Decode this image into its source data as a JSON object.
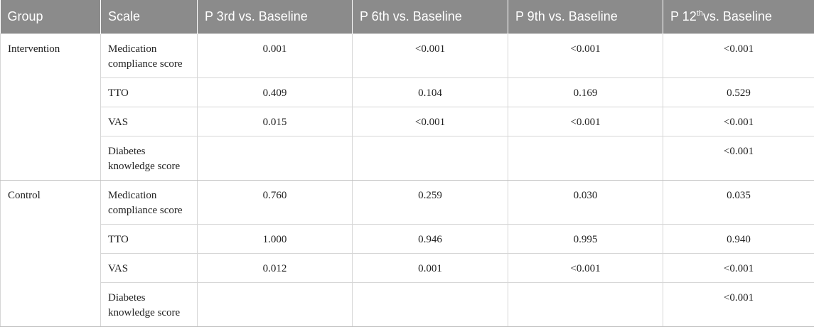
{
  "headers": {
    "group": "Group",
    "scale": "Scale",
    "p3_prefix": "P 3rd vs. Baseline",
    "p6": "P 6th vs. Baseline",
    "p9": "P 9th vs. Baseline",
    "p12_main": "P 12",
    "p12_sup": "th",
    "p12_tail": "vs. Baseline"
  },
  "groups": [
    {
      "name": "Intervention",
      "rows": [
        {
          "scale": "Medication compliance score",
          "p3": "0.001",
          "p6": "<0.001",
          "p9": "<0.001",
          "p12": "<0.001"
        },
        {
          "scale": "TTO",
          "p3": "0.409",
          "p6": "0.104",
          "p9": "0.169",
          "p12": "0.529"
        },
        {
          "scale": "VAS",
          "p3": "0.015",
          "p6": "<0.001",
          "p9": "<0.001",
          "p12": "<0.001"
        },
        {
          "scale": "Diabetes knowledge score",
          "p3": "",
          "p6": "",
          "p9": "",
          "p12": "<0.001"
        }
      ]
    },
    {
      "name": "Control",
      "rows": [
        {
          "scale": "Medication compliance score",
          "p3": "0.760",
          "p6": "0.259",
          "p9": "0.030",
          "p12": "0.035"
        },
        {
          "scale": "TTO",
          "p3": "1.000",
          "p6": "0.946",
          "p9": "0.995",
          "p12": "0.940"
        },
        {
          "scale": "VAS",
          "p3": "0.012",
          "p6": "0.001",
          "p9": "<0.001",
          "p12": "<0.001"
        },
        {
          "scale": "Diabetes knowledge score",
          "p3": "",
          "p6": "",
          "p9": "",
          "p12": "<0.001"
        }
      ]
    }
  ]
}
